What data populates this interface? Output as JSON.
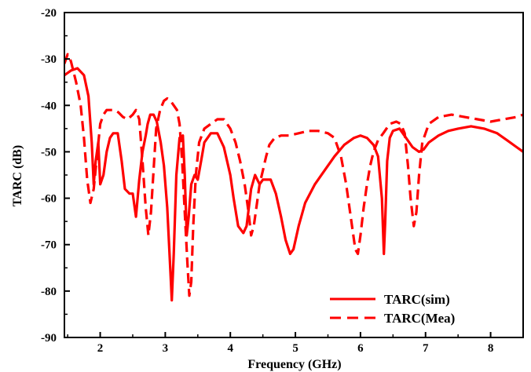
{
  "chart_data": {
    "type": "line",
    "title": "",
    "xlabel": "Frequency (GHz)",
    "ylabel": "TARC (dB)",
    "xlim": [
      1.45,
      8.5
    ],
    "ylim": [
      -90,
      -20
    ],
    "xticks": [
      2,
      3,
      4,
      5,
      6,
      7,
      8
    ],
    "yticks": [
      -20,
      -30,
      -40,
      -50,
      -60,
      -70,
      -80,
      -90
    ],
    "grid": false,
    "legend_position": "bottom-right",
    "colors": {
      "series": "#ff0000",
      "axis": "#000000",
      "background": "#ffffff"
    },
    "series": [
      {
        "name": "TARC(sim)",
        "style": "solid",
        "points": [
          [
            1.45,
            -33.5
          ],
          [
            1.55,
            -32.5
          ],
          [
            1.65,
            -32
          ],
          [
            1.75,
            -33.5
          ],
          [
            1.82,
            -38
          ],
          [
            1.87,
            -48
          ],
          [
            1.9,
            -57
          ],
          [
            1.93,
            -52
          ],
          [
            1.97,
            -48
          ],
          [
            2.0,
            -57
          ],
          [
            2.05,
            -55
          ],
          [
            2.1,
            -50
          ],
          [
            2.15,
            -47
          ],
          [
            2.2,
            -46
          ],
          [
            2.27,
            -46
          ],
          [
            2.33,
            -52
          ],
          [
            2.38,
            -58
          ],
          [
            2.45,
            -59
          ],
          [
            2.5,
            -59
          ],
          [
            2.55,
            -64
          ],
          [
            2.6,
            -56
          ],
          [
            2.65,
            -50
          ],
          [
            2.7,
            -46.5
          ],
          [
            2.73,
            -44
          ],
          [
            2.77,
            -42
          ],
          [
            2.82,
            -42
          ],
          [
            2.87,
            -43.5
          ],
          [
            2.93,
            -48
          ],
          [
            2.98,
            -53
          ],
          [
            3.03,
            -62
          ],
          [
            3.08,
            -76
          ],
          [
            3.1,
            -82
          ],
          [
            3.13,
            -72
          ],
          [
            3.17,
            -55
          ],
          [
            3.22,
            -47
          ],
          [
            3.27,
            -46.5
          ],
          [
            3.3,
            -55
          ],
          [
            3.33,
            -68
          ],
          [
            3.36,
            -64
          ],
          [
            3.4,
            -57
          ],
          [
            3.45,
            -55
          ],
          [
            3.5,
            -56
          ],
          [
            3.55,
            -52
          ],
          [
            3.6,
            -48
          ],
          [
            3.7,
            -46
          ],
          [
            3.8,
            -46
          ],
          [
            3.9,
            -49
          ],
          [
            4.0,
            -55
          ],
          [
            4.05,
            -60
          ],
          [
            4.12,
            -66
          ],
          [
            4.2,
            -67.5
          ],
          [
            4.25,
            -66
          ],
          [
            4.32,
            -58
          ],
          [
            4.38,
            -55
          ],
          [
            4.45,
            -57
          ],
          [
            4.5,
            -56
          ],
          [
            4.55,
            -56
          ],
          [
            4.62,
            -56
          ],
          [
            4.7,
            -59
          ],
          [
            4.78,
            -64
          ],
          [
            4.85,
            -69
          ],
          [
            4.92,
            -72
          ],
          [
            4.97,
            -71
          ],
          [
            5.05,
            -66
          ],
          [
            5.15,
            -61
          ],
          [
            5.3,
            -57
          ],
          [
            5.45,
            -54
          ],
          [
            5.6,
            -51
          ],
          [
            5.75,
            -48.5
          ],
          [
            5.9,
            -47
          ],
          [
            6.0,
            -46.5
          ],
          [
            6.1,
            -47
          ],
          [
            6.2,
            -48.5
          ],
          [
            6.27,
            -51
          ],
          [
            6.33,
            -60
          ],
          [
            6.36,
            -72
          ],
          [
            6.38,
            -65
          ],
          [
            6.41,
            -52
          ],
          [
            6.45,
            -47
          ],
          [
            6.5,
            -45.5
          ],
          [
            6.6,
            -45
          ],
          [
            6.7,
            -47
          ],
          [
            6.8,
            -49
          ],
          [
            6.9,
            -50
          ],
          [
            6.97,
            -49.5
          ],
          [
            7.05,
            -48
          ],
          [
            7.2,
            -46.5
          ],
          [
            7.35,
            -45.5
          ],
          [
            7.5,
            -45
          ],
          [
            7.7,
            -44.5
          ],
          [
            7.9,
            -45
          ],
          [
            8.1,
            -46
          ],
          [
            8.25,
            -47.5
          ],
          [
            8.4,
            -49
          ],
          [
            8.5,
            -50
          ]
        ]
      },
      {
        "name": "TARC(Mea)",
        "style": "dashed",
        "points": [
          [
            1.45,
            -31
          ],
          [
            1.5,
            -29
          ],
          [
            1.55,
            -30.5
          ],
          [
            1.63,
            -35
          ],
          [
            1.7,
            -40
          ],
          [
            1.75,
            -47
          ],
          [
            1.8,
            -56
          ],
          [
            1.85,
            -61
          ],
          [
            1.9,
            -58
          ],
          [
            1.95,
            -51
          ],
          [
            2.0,
            -44
          ],
          [
            2.05,
            -42
          ],
          [
            2.1,
            -41
          ],
          [
            2.15,
            -41
          ],
          [
            2.22,
            -41
          ],
          [
            2.28,
            -41.5
          ],
          [
            2.35,
            -42.5
          ],
          [
            2.42,
            -43
          ],
          [
            2.5,
            -42
          ],
          [
            2.55,
            -41
          ],
          [
            2.6,
            -43
          ],
          [
            2.65,
            -52
          ],
          [
            2.7,
            -62
          ],
          [
            2.74,
            -68
          ],
          [
            2.78,
            -63
          ],
          [
            2.82,
            -54
          ],
          [
            2.86,
            -45
          ],
          [
            2.92,
            -41
          ],
          [
            2.98,
            -39
          ],
          [
            3.03,
            -38.5
          ],
          [
            3.08,
            -39
          ],
          [
            3.13,
            -40
          ],
          [
            3.18,
            -41
          ],
          [
            3.22,
            -44
          ],
          [
            3.26,
            -52
          ],
          [
            3.3,
            -63
          ],
          [
            3.34,
            -74
          ],
          [
            3.37,
            -81
          ],
          [
            3.4,
            -78
          ],
          [
            3.43,
            -66
          ],
          [
            3.47,
            -55
          ],
          [
            3.52,
            -48
          ],
          [
            3.6,
            -45
          ],
          [
            3.7,
            -44
          ],
          [
            3.8,
            -43
          ],
          [
            3.9,
            -43
          ],
          [
            4.0,
            -45
          ],
          [
            4.08,
            -48
          ],
          [
            4.15,
            -52
          ],
          [
            4.22,
            -57
          ],
          [
            4.28,
            -63
          ],
          [
            4.32,
            -68
          ],
          [
            4.36,
            -66
          ],
          [
            4.4,
            -62
          ],
          [
            4.45,
            -57
          ],
          [
            4.5,
            -54
          ],
          [
            4.55,
            -51
          ],
          [
            4.6,
            -48.5
          ],
          [
            4.68,
            -47
          ],
          [
            4.78,
            -46.5
          ],
          [
            4.9,
            -46.5
          ],
          [
            5.05,
            -46
          ],
          [
            5.2,
            -45.5
          ],
          [
            5.35,
            -45.5
          ],
          [
            5.5,
            -46
          ],
          [
            5.6,
            -47
          ],
          [
            5.7,
            -51
          ],
          [
            5.78,
            -57
          ],
          [
            5.85,
            -64
          ],
          [
            5.92,
            -71
          ],
          [
            5.96,
            -72
          ],
          [
            6.0,
            -68
          ],
          [
            6.05,
            -62
          ],
          [
            6.1,
            -57
          ],
          [
            6.15,
            -53
          ],
          [
            6.2,
            -50
          ],
          [
            6.27,
            -47.5
          ],
          [
            6.35,
            -46
          ],
          [
            6.45,
            -44
          ],
          [
            6.55,
            -43.5
          ],
          [
            6.62,
            -44
          ],
          [
            6.68,
            -46
          ],
          [
            6.73,
            -53
          ],
          [
            6.77,
            -60
          ],
          [
            6.82,
            -66
          ],
          [
            6.86,
            -63
          ],
          [
            6.9,
            -55
          ],
          [
            6.95,
            -48
          ],
          [
            7.05,
            -44
          ],
          [
            7.2,
            -42.5
          ],
          [
            7.4,
            -42
          ],
          [
            7.6,
            -42.5
          ],
          [
            7.8,
            -43
          ],
          [
            8.0,
            -43.5
          ],
          [
            8.2,
            -43
          ],
          [
            8.4,
            -42.5
          ],
          [
            8.5,
            -42
          ]
        ]
      }
    ]
  }
}
